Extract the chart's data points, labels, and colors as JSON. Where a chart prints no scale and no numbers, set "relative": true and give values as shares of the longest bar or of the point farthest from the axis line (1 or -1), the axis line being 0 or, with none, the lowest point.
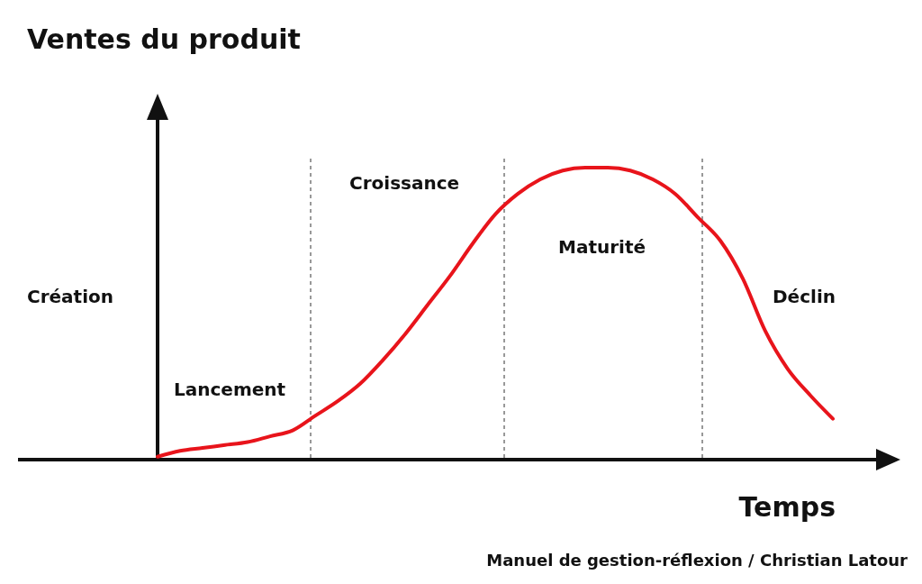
{
  "chart_data": {
    "type": "line",
    "relative": true,
    "title": "Ventes du produit",
    "xlabel": "Temps",
    "categories": [
      null,
      null,
      null,
      null,
      null,
      null,
      null,
      null,
      null,
      null,
      null,
      null,
      null,
      null,
      null,
      null,
      null,
      null,
      null,
      null,
      null,
      null,
      null,
      null,
      null,
      null,
      null,
      null,
      null,
      null,
      null
    ],
    "series": [
      {
        "color": "#e8141b",
        "values": [
          0.01,
          0.03,
          0.04,
          0.05,
          0.06,
          0.08,
          0.1,
          0.15,
          0.2,
          0.26,
          0.34,
          0.43,
          0.53,
          0.63,
          0.74,
          0.84,
          0.91,
          0.96,
          0.99,
          1,
          1,
          0.99,
          0.96,
          0.91,
          0.83,
          0.75,
          0.62,
          0.44,
          0.31,
          0.22,
          0.14
        ]
      }
    ],
    "annotations": [
      "Création",
      "Lancement",
      "Croissance",
      "Maturité",
      "Déclin",
      "Manuel de gestion-réflexion / Christian Latour"
    ],
    "grid": false,
    "marker": "none",
    "line_style": "solid"
  }
}
